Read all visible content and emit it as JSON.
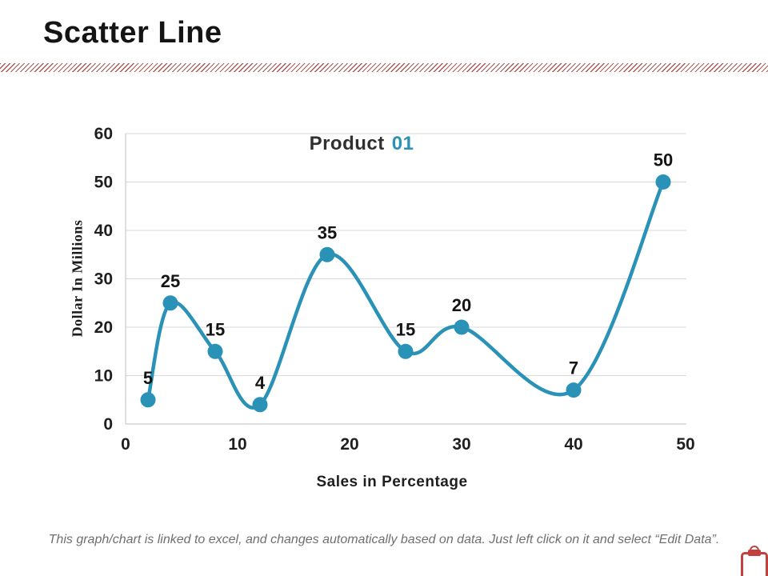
{
  "slide": {
    "title": "Scatter Line",
    "footer": "This graph/chart is linked to excel, and changes automatically based on data. Just left click on it and select “Edit Data”.",
    "clipboard_icon": "clipboard"
  },
  "colors": {
    "accent_teal": "#2A92B7",
    "hatch_red": "#9E3E3A",
    "icon_red": "#C2413C",
    "gridline": "#D9D9D9",
    "axis_line": "#BFBFBF",
    "tick_text": "#1F1F1F",
    "footer_gray": "#6F6F6F"
  },
  "chart_data": {
    "type": "scatter",
    "subtype": "smooth-line-with-markers",
    "title_parts": [
      {
        "text": "Product",
        "color": "#303030"
      },
      {
        "text": "01",
        "color": "#2A92B7"
      }
    ],
    "xlabel": "Sales in Percentage",
    "ylabel": "Dollar In Millions",
    "xlim": [
      0,
      50
    ],
    "ylim": [
      0,
      60
    ],
    "xticks": [
      0,
      10,
      20,
      30,
      40,
      50
    ],
    "yticks": [
      0,
      10,
      20,
      30,
      40,
      50,
      60
    ],
    "grid": "horizontal",
    "legend": "none",
    "series": [
      {
        "name": "Product 01",
        "color": "#2A92B7",
        "points": [
          {
            "x": 2,
            "y": 5,
            "label": "5"
          },
          {
            "x": 4,
            "y": 25,
            "label": "25"
          },
          {
            "x": 8,
            "y": 15,
            "label": "15"
          },
          {
            "x": 12,
            "y": 4,
            "label": "4"
          },
          {
            "x": 18,
            "y": 35,
            "label": "35"
          },
          {
            "x": 25,
            "y": 15,
            "label": "15"
          },
          {
            "x": 30,
            "y": 20,
            "label": "20"
          },
          {
            "x": 40,
            "y": 7,
            "label": "7"
          },
          {
            "x": 48,
            "y": 50,
            "label": "50"
          }
        ]
      }
    ]
  }
}
